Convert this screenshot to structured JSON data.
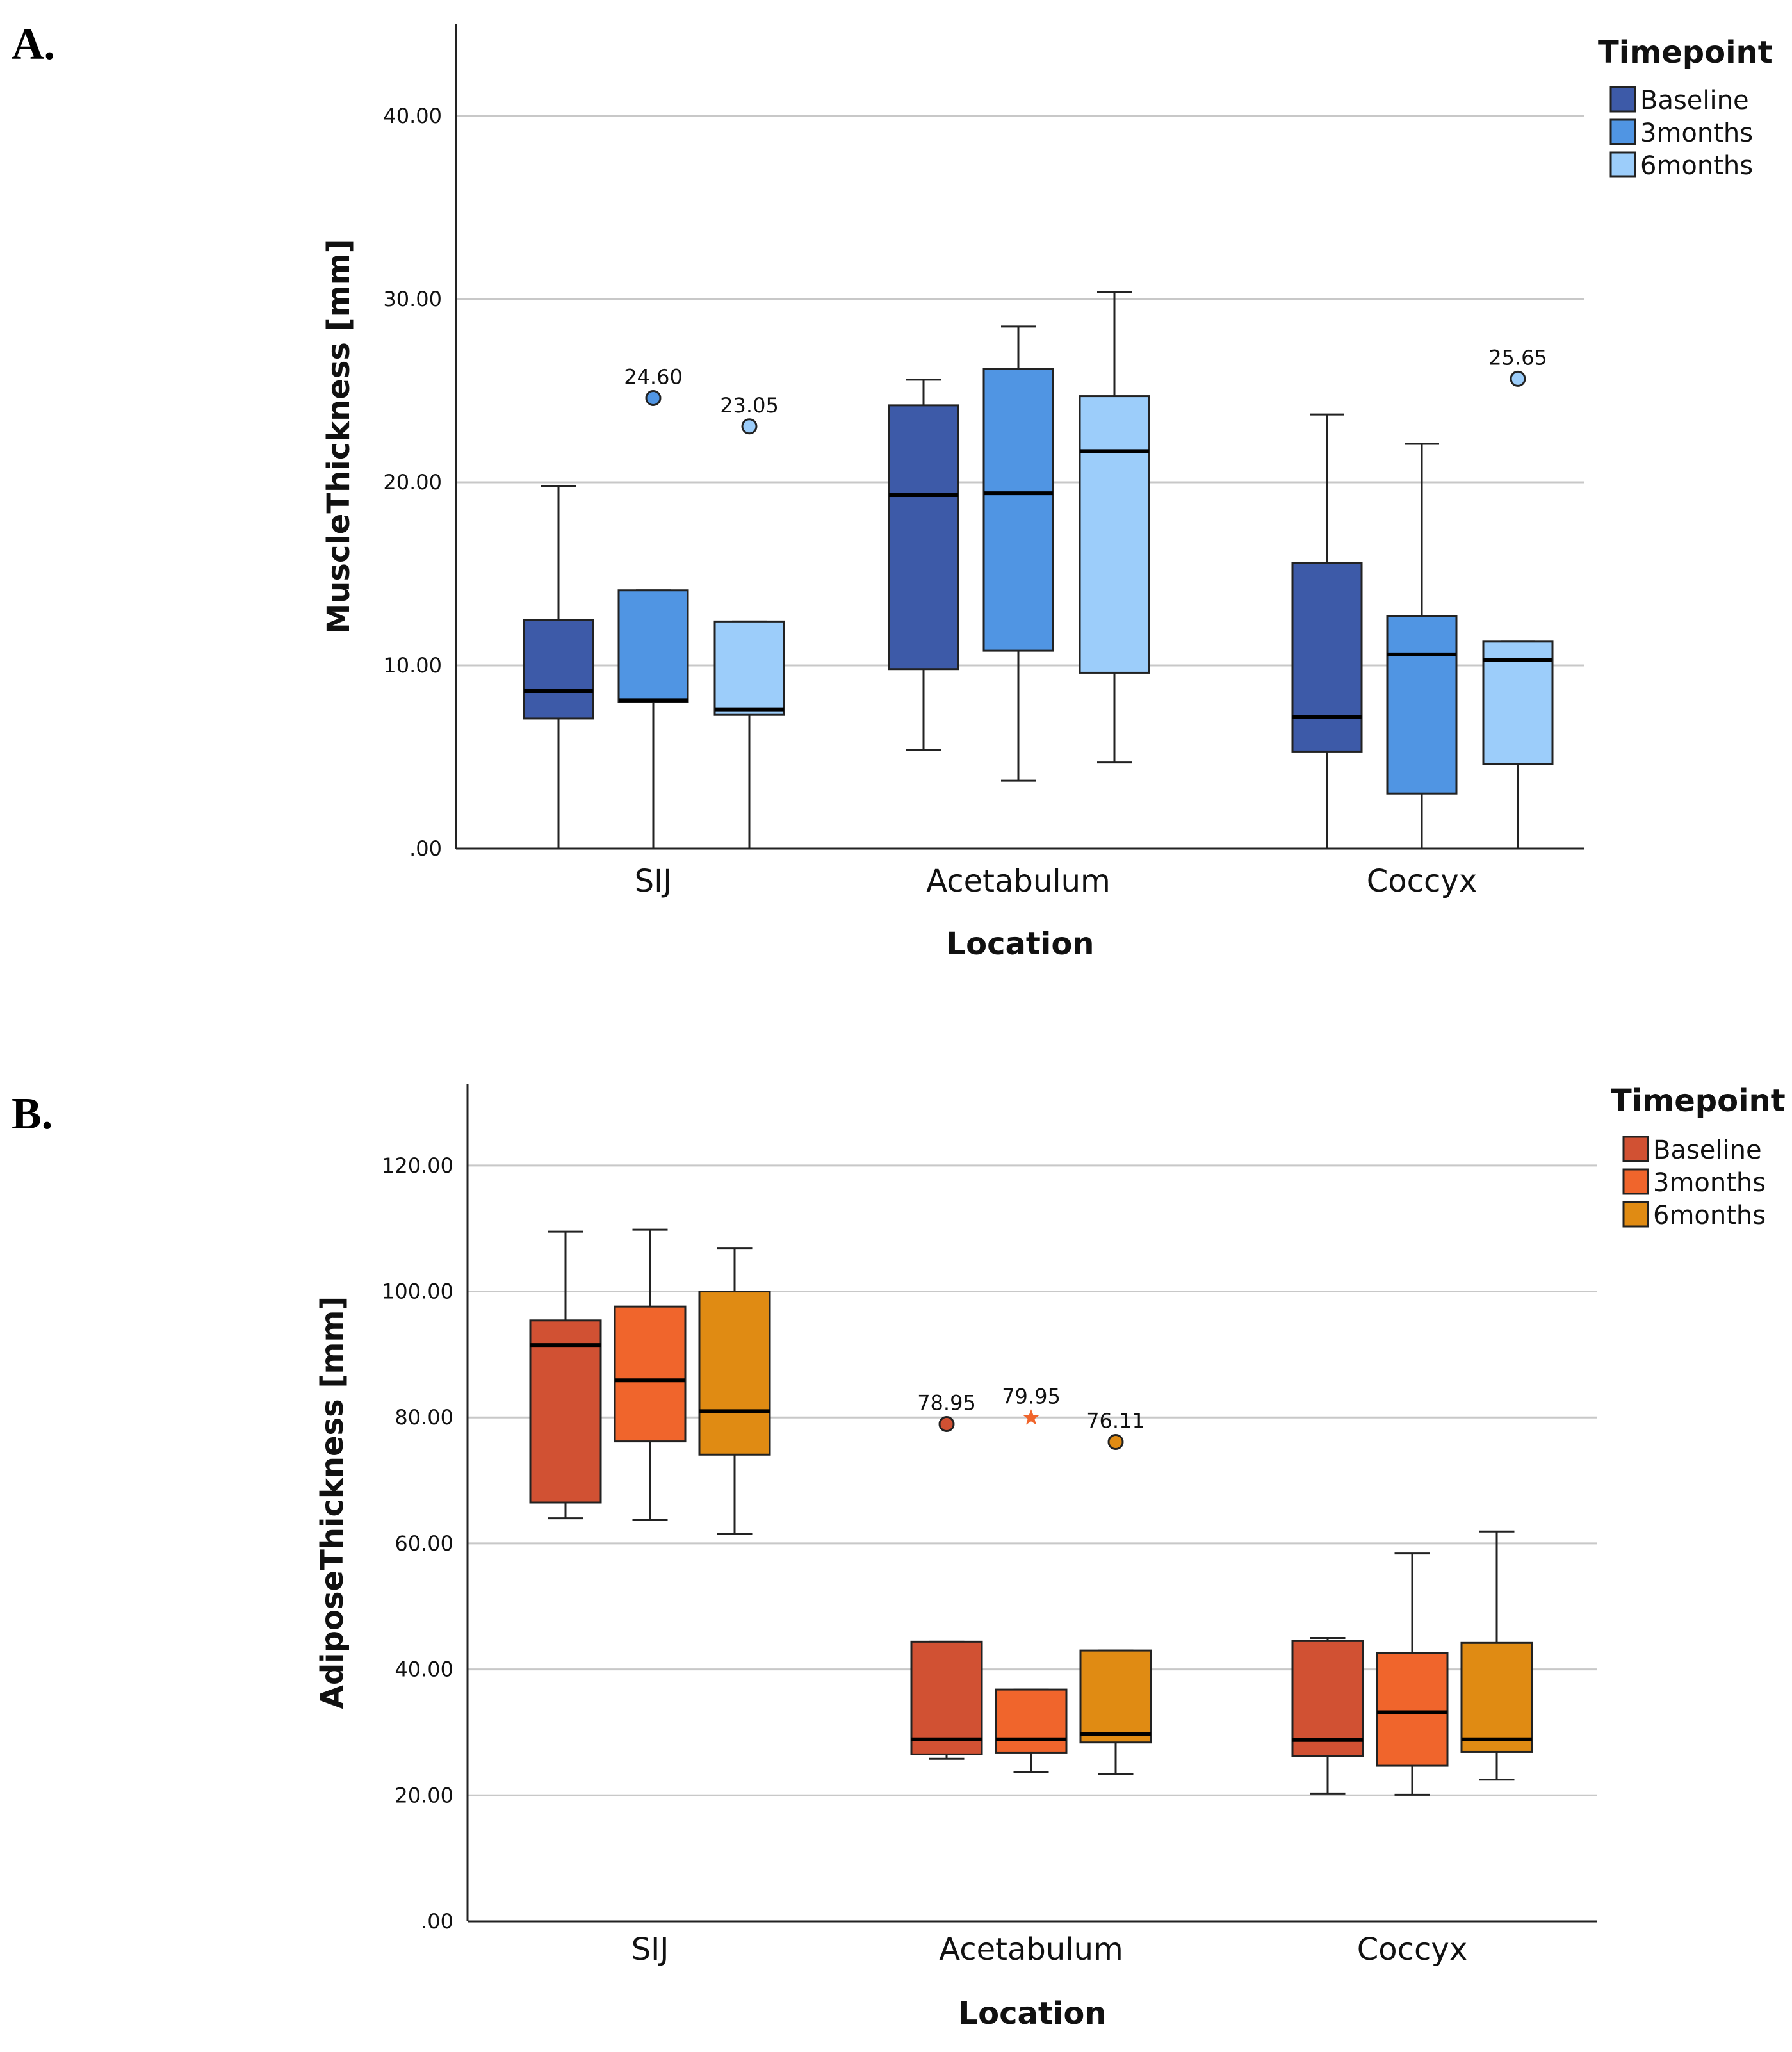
{
  "panels": {
    "a": {
      "letter": "A."
    },
    "b": {
      "letter": "B."
    }
  },
  "chart_data": [
    {
      "type": "boxplot",
      "panel": "A.",
      "title": "",
      "xlabel": "Location",
      "ylabel": "MuscleThickness [mm]",
      "ylim": [
        0,
        45
      ],
      "yticks": [
        0,
        10,
        20,
        30,
        40
      ],
      "ytick_labels": [
        ".00",
        "10.00",
        "20.00",
        "30.00",
        "40.00"
      ],
      "grid": true,
      "legend": {
        "title": "Timepoint",
        "placement": "top-right",
        "entries": [
          "Baseline",
          "3months",
          "6months"
        ]
      },
      "categories": [
        "SIJ",
        "Acetabulum",
        "Coccyx"
      ],
      "series": [
        {
          "name": "Baseline",
          "color": "#3d5aa8",
          "boxes": [
            {
              "min": 0,
              "q1": 7.1,
              "median": 8.6,
              "q3": 12.5,
              "max": 19.8
            },
            {
              "min": 5.4,
              "q1": 9.8,
              "median": 19.3,
              "q3": 24.2,
              "max": 25.6
            },
            {
              "min": 0,
              "q1": 5.3,
              "median": 7.2,
              "q3": 15.6,
              "max": 23.7
            }
          ]
        },
        {
          "name": "3months",
          "color": "#5095e3",
          "boxes": [
            {
              "min": 0,
              "q1": 8.0,
              "median": 8.1,
              "q3": 14.1,
              "max": 14.1
            },
            {
              "min": 3.7,
              "q1": 10.8,
              "median": 19.4,
              "q3": 26.2,
              "max": 28.5
            },
            {
              "min": 0,
              "q1": 3.0,
              "median": 10.6,
              "q3": 12.7,
              "max": 22.1
            }
          ]
        },
        {
          "name": "6months",
          "color": "#9ccdfa",
          "boxes": [
            {
              "min": 0,
              "q1": 7.3,
              "median": 7.6,
              "q3": 12.4,
              "max": 12.4
            },
            {
              "min": 4.7,
              "q1": 9.6,
              "median": 21.7,
              "q3": 24.7,
              "max": 30.4
            },
            {
              "min": 0,
              "q1": 4.6,
              "median": 10.3,
              "q3": 11.3,
              "max": 11.3
            }
          ]
        }
      ],
      "outliers": [
        {
          "category": "SIJ",
          "series": "3months",
          "value": 24.6,
          "label": "24.60",
          "marker": "circle"
        },
        {
          "category": "SIJ",
          "series": "6months",
          "value": 23.05,
          "label": "23.05",
          "marker": "circle"
        },
        {
          "category": "Coccyx",
          "series": "6months",
          "value": 25.65,
          "label": "25.65",
          "marker": "circle"
        }
      ]
    },
    {
      "type": "boxplot",
      "panel": "B.",
      "title": "",
      "xlabel": "Location",
      "ylabel": "AdiposeThickness [mm]",
      "ylim": [
        0,
        133
      ],
      "yticks": [
        0,
        20,
        40,
        60,
        80,
        100,
        120
      ],
      "ytick_labels": [
        ".00",
        "20.00",
        "40.00",
        "60.00",
        "80.00",
        "100.00",
        "120.00"
      ],
      "grid": true,
      "legend": {
        "title": "Timepoint",
        "placement": "top-right",
        "entries": [
          "Baseline",
          "3months",
          "6months"
        ]
      },
      "categories": [
        "SIJ",
        "Acetabulum",
        "Coccyx"
      ],
      "series": [
        {
          "name": "Baseline",
          "color": "#d15133",
          "boxes": [
            {
              "min": 64,
              "q1": 66.5,
              "median": 91.5,
              "q3": 95.4,
              "max": 109.5
            },
            {
              "min": 25.8,
              "q1": 26.5,
              "median": 28.9,
              "q3": 44.4,
              "max": 44.4
            },
            {
              "min": 20.3,
              "q1": 26.2,
              "median": 28.8,
              "q3": 44.5,
              "max": 45.0
            }
          ]
        },
        {
          "name": "3months",
          "color": "#f0652c",
          "boxes": [
            {
              "min": 63.7,
              "q1": 76.2,
              "median": 85.9,
              "q3": 97.6,
              "max": 109.8
            },
            {
              "min": 23.7,
              "q1": 26.8,
              "median": 28.9,
              "q3": 36.8,
              "max": 36.8
            },
            {
              "min": 20.1,
              "q1": 24.7,
              "median": 33.2,
              "q3": 42.6,
              "max": 58.4
            }
          ]
        },
        {
          "name": "6months",
          "color": "#e08b13",
          "boxes": [
            {
              "min": 61.5,
              "q1": 74.1,
              "median": 81.0,
              "q3": 100.0,
              "max": 106.9
            },
            {
              "min": 23.4,
              "q1": 28.4,
              "median": 29.7,
              "q3": 43.0,
              "max": 43.0
            },
            {
              "min": 22.5,
              "q1": 26.9,
              "median": 28.9,
              "q3": 44.2,
              "max": 61.9
            }
          ]
        }
      ],
      "outliers": [
        {
          "category": "Acetabulum",
          "series": "Baseline",
          "value": 78.95,
          "label": "78.95",
          "marker": "circle"
        },
        {
          "category": "Acetabulum",
          "series": "3months",
          "value": 79.95,
          "label": "79.95",
          "marker": "star"
        },
        {
          "category": "Acetabulum",
          "series": "6months",
          "value": 76.11,
          "label": "76.11",
          "marker": "circle"
        }
      ]
    }
  ]
}
